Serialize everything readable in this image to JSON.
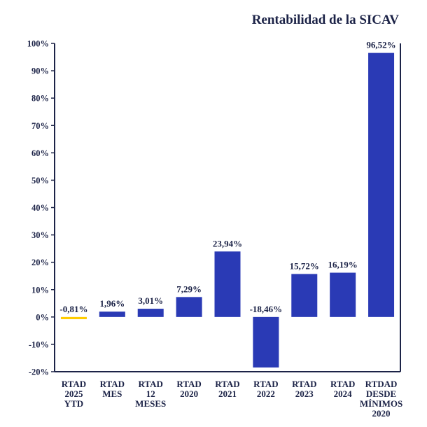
{
  "chart_data": {
    "type": "bar",
    "title": "Rentabilidad de la SICAV",
    "xlabel": "",
    "ylabel": "",
    "ylim": [
      -20,
      100
    ],
    "yticks": [
      100,
      90,
      80,
      70,
      60,
      50,
      40,
      30,
      20,
      10,
      0,
      -10,
      -20
    ],
    "ytick_labels": [
      "100%",
      "90%",
      "80%",
      "70%",
      "60%",
      "50%",
      "40%",
      "30%",
      "20%",
      "10%",
      "0%",
      "-10%",
      "-20%"
    ],
    "grid": false,
    "categories": [
      [
        "RTAD",
        "2025",
        "YTD"
      ],
      [
        "RTAD",
        "MES"
      ],
      [
        "RTAD",
        "12",
        "MESES"
      ],
      [
        "RTAD",
        "2020"
      ],
      [
        "RTAD",
        "2021"
      ],
      [
        "RTAD",
        "2022"
      ],
      [
        "RTAD",
        "2023"
      ],
      [
        "RTAD",
        "2024"
      ],
      [
        "RTDAD",
        "DESDE",
        "MÍNIMOS",
        "2020"
      ]
    ],
    "values": [
      -0.81,
      1.96,
      3.01,
      7.29,
      23.94,
      -18.46,
      15.72,
      16.19,
      96.52
    ],
    "data_labels": [
      "-0,81%",
      "1,96%",
      "3,01%",
      "7,29%",
      "23,94%",
      "-18,46%",
      "15,72%",
      "16,19%",
      "96,52%"
    ],
    "colors": [
      "#ffcc00",
      "#2a3ab5",
      "#2a3ab5",
      "#2a3ab5",
      "#2a3ab5",
      "#2a3ab5",
      "#2a3ab5",
      "#2a3ab5",
      "#2a3ab5"
    ],
    "axis_color": "#1c2347"
  }
}
